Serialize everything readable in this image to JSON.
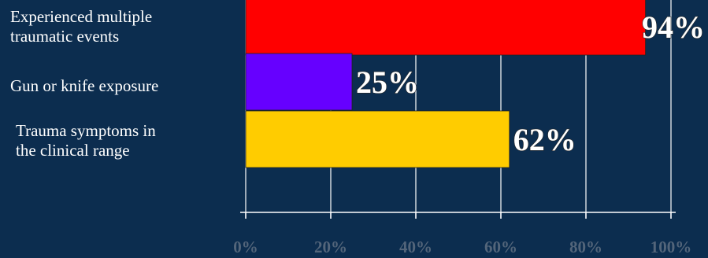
{
  "chart_data": {
    "type": "bar",
    "orientation": "horizontal",
    "categories": [
      "Experienced multiple\ntraumatic events",
      "Gun or knife exposure",
      "Trauma symptoms in\nthe clinical range"
    ],
    "values": [
      94,
      25,
      62
    ],
    "data_labels": [
      "94%",
      "25%",
      "62%"
    ],
    "colors": [
      "#ff0000",
      "#6600ff",
      "#ffcc00"
    ],
    "xlim": [
      0,
      100
    ],
    "x_ticks": [
      0,
      20,
      40,
      60,
      80,
      100
    ],
    "x_tick_labels": [
      "0%",
      "20%",
      "40%",
      "60%",
      "80%",
      "100%"
    ],
    "grid": true,
    "legend": "none",
    "title": "",
    "xlabel": "",
    "ylabel": ""
  }
}
